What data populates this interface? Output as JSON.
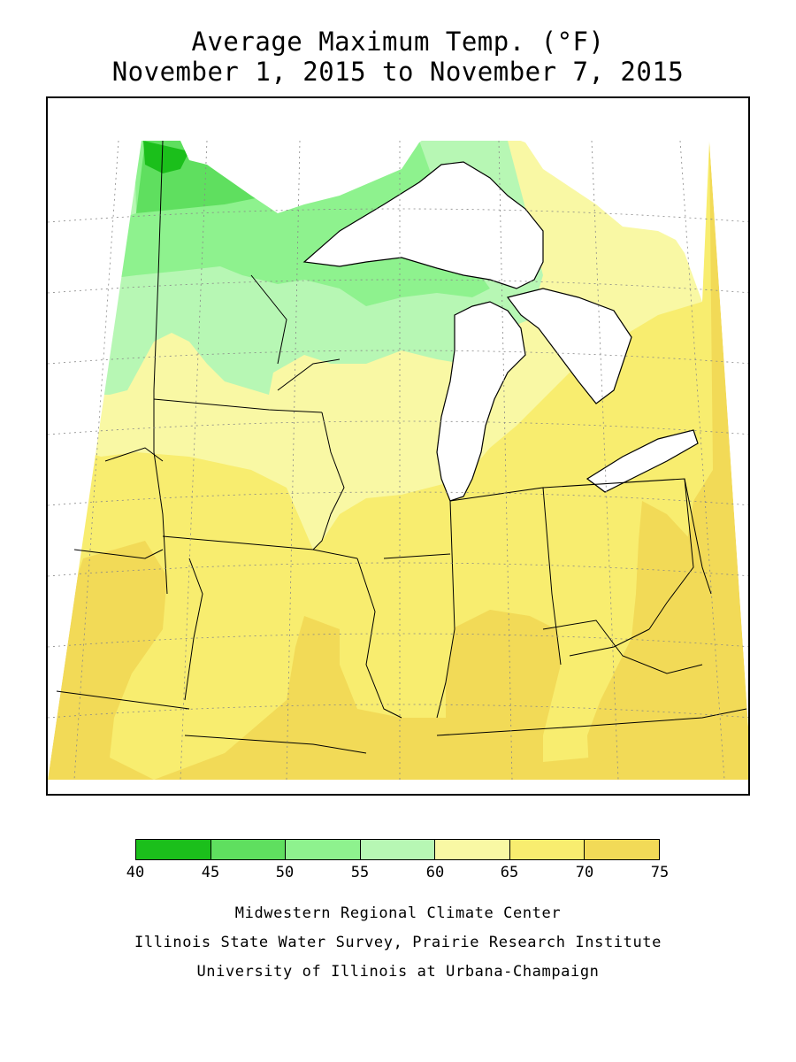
{
  "title": {
    "line1": "Average Maximum Temp. (°F)",
    "line2": "November 1, 2015 to November 7, 2015"
  },
  "legend": {
    "ticks": [
      "40",
      "45",
      "50",
      "55",
      "60",
      "65",
      "70",
      "75"
    ],
    "colors": [
      "#1bbf1b",
      "#5fdf5f",
      "#8ef28e",
      "#b7f7b4",
      "#f9f8a4",
      "#f8ed6f",
      "#f2da57"
    ]
  },
  "map": {
    "water_color": "#ffffff",
    "outline_color": "#000000"
  },
  "credits": [
    "Midwestern Regional Climate Center",
    "Illinois State Water Survey, Prairie Research Institute",
    "University of Illinois at Urbana-Champaign"
  ]
}
